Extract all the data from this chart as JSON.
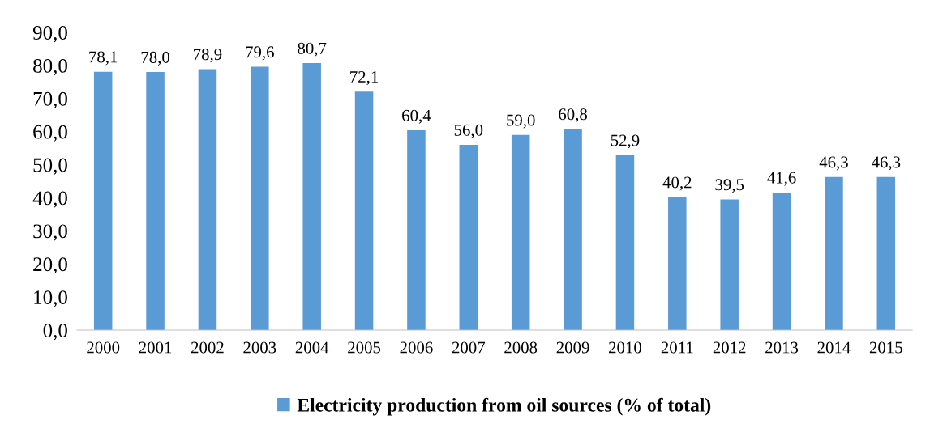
{
  "chart_data": {
    "type": "bar",
    "categories": [
      "2000",
      "2001",
      "2002",
      "2003",
      "2004",
      "2005",
      "2006",
      "2007",
      "2008",
      "2009",
      "2010",
      "2011",
      "2012",
      "2013",
      "2014",
      "2015"
    ],
    "series": [
      {
        "name": "Electricity production from oil sources (% of total)",
        "color": "#5b9bd5",
        "values": [
          78.1,
          78.0,
          78.9,
          79.6,
          80.7,
          72.1,
          60.4,
          56.0,
          59.0,
          60.8,
          52.9,
          40.2,
          39.5,
          41.6,
          46.3,
          46.3
        ],
        "value_labels": [
          "78,1",
          "78,0",
          "78,9",
          "79,6",
          "80,7",
          "72,1",
          "60,4",
          "56,0",
          "59,0",
          "60,8",
          "52,9",
          "40,2",
          "39,5",
          "41,6",
          "46,3",
          "46,3"
        ]
      }
    ],
    "ylim": [
      0,
      90
    ],
    "yticks": [
      {
        "value": 0,
        "label": "0,0"
      },
      {
        "value": 10,
        "label": "10,0"
      },
      {
        "value": 20,
        "label": "20,0"
      },
      {
        "value": 30,
        "label": "30,0"
      },
      {
        "value": 40,
        "label": "40,0"
      },
      {
        "value": 50,
        "label": "50,0"
      },
      {
        "value": 60,
        "label": "60,0"
      },
      {
        "value": 70,
        "label": "70,0"
      },
      {
        "value": 80,
        "label": "80,0"
      },
      {
        "value": 90,
        "label": "90,0"
      }
    ],
    "grid": false,
    "legend": "bottom"
  }
}
